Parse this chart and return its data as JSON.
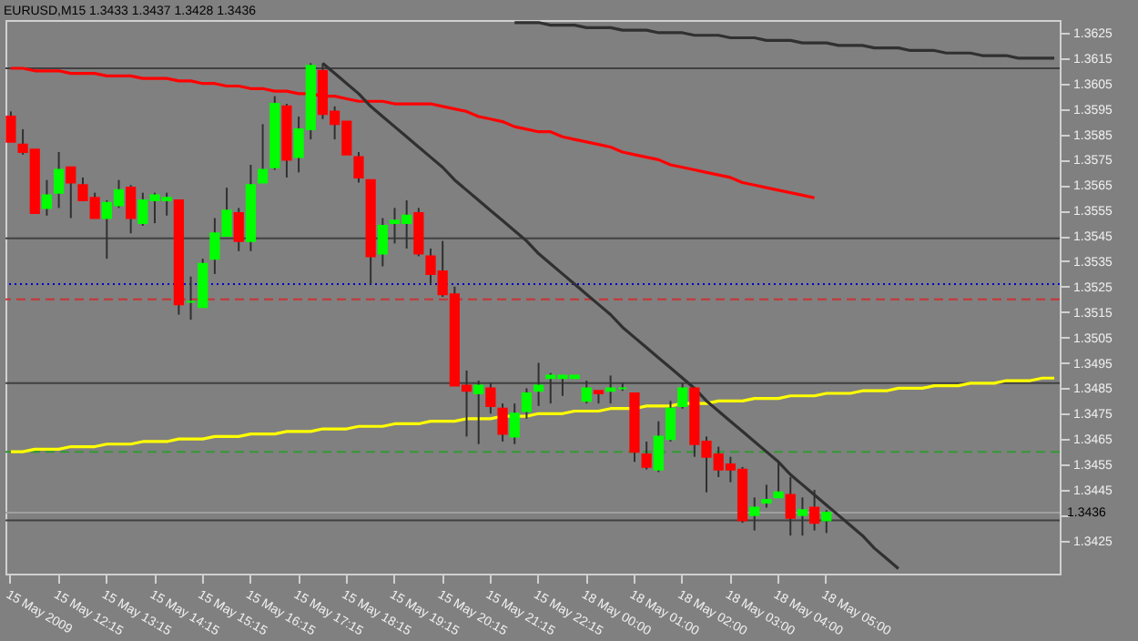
{
  "chart_data": {
    "type": "candlestick",
    "title": "EURUSD,M15  1.3433 1.3437 1.3428 1.3436",
    "categories": [
      "15 May 2009",
      null,
      null,
      null,
      "15 May 12:15",
      null,
      null,
      null,
      "15 May 13:15",
      null,
      null,
      null,
      "15 May 14:15",
      null,
      null,
      null,
      "15 May 15:15",
      null,
      null,
      null,
      "15 May 16:15",
      null,
      null,
      null,
      "15 May 17:15",
      null,
      null,
      null,
      "15 May 18:15",
      null,
      null,
      null,
      "15 May 19:15",
      null,
      null,
      null,
      "15 May 20:15",
      null,
      null,
      null,
      "15 May 21:15",
      null,
      null,
      null,
      "15 May 22:15",
      null,
      null,
      null,
      "18 May 00:00",
      null,
      null,
      null,
      "18 May 01:00",
      null,
      null,
      null,
      "18 May 02:00",
      null,
      null,
      null,
      "18 May 03:00",
      null,
      null,
      null,
      "18 May 04:00",
      null,
      null,
      null,
      "18 May 05:00",
      null,
      null,
      null,
      null,
      null,
      null,
      null,
      null,
      null,
      null,
      null,
      null,
      null,
      null,
      null,
      null,
      null,
      null,
      null
    ],
    "ohlc": [
      [
        1.3592,
        1.3594,
        1.3582,
        1.3582
      ],
      [
        1.3581,
        1.3587,
        1.3577,
        1.3578
      ],
      [
        1.3579,
        1.3579,
        1.3554,
        1.3554
      ],
      [
        1.3556,
        1.3567,
        1.3553,
        1.3561
      ],
      [
        1.3562,
        1.3578,
        1.3556,
        1.3571
      ],
      [
        1.3572,
        1.3572,
        1.3552,
        1.3566
      ],
      [
        1.3565,
        1.3568,
        1.3559,
        1.3559
      ],
      [
        1.356,
        1.3562,
        1.3552,
        1.3552
      ],
      [
        1.3552,
        1.3559,
        1.3536,
        1.3558
      ],
      [
        1.3557,
        1.3567,
        1.3556,
        1.3563
      ],
      [
        1.3564,
        1.3565,
        1.3546,
        1.3552
      ],
      [
        1.355,
        1.3562,
        1.3549,
        1.3559
      ],
      [
        1.3559,
        1.3562,
        1.355,
        1.3561
      ],
      [
        1.3559,
        1.3562,
        1.3553,
        1.356
      ],
      [
        1.3559,
        1.3559,
        1.3514,
        1.3518
      ],
      [
        1.3519,
        1.3529,
        1.3512,
        1.3519
      ],
      [
        1.3517,
        1.3536,
        1.3517,
        1.3534
      ],
      [
        1.3536,
        1.3552,
        1.353,
        1.3546
      ],
      [
        1.3545,
        1.3564,
        1.3545,
        1.3555
      ],
      [
        1.3554,
        1.3556,
        1.3539,
        1.3543
      ],
      [
        1.3543,
        1.3573,
        1.3539,
        1.3565
      ],
      [
        1.3566,
        1.3589,
        1.3566,
        1.3571
      ],
      [
        1.3572,
        1.36,
        1.3571,
        1.3597
      ],
      [
        1.3596,
        1.3597,
        1.3568,
        1.3575
      ],
      [
        1.3576,
        1.3592,
        1.357,
        1.3587
      ],
      [
        1.3587,
        1.3613,
        1.3583,
        1.3612
      ],
      [
        1.361,
        1.3613,
        1.3591,
        1.3593
      ],
      [
        1.3594,
        1.3596,
        1.3583,
        1.3589
      ],
      [
        1.359,
        1.359,
        1.3577,
        1.3577
      ],
      [
        1.3576,
        1.3578,
        1.3566,
        1.3568
      ],
      [
        1.3567,
        1.3567,
        1.3526,
        1.3537
      ],
      [
        1.3538,
        1.3552,
        1.3533,
        1.3549
      ],
      [
        1.355,
        1.3556,
        1.3542,
        1.3551
      ],
      [
        1.355,
        1.3559,
        1.354,
        1.3553
      ],
      [
        1.3554,
        1.3556,
        1.3537,
        1.3538
      ],
      [
        1.3537,
        1.354,
        1.3526,
        1.353
      ],
      [
        1.3531,
        1.3543,
        1.3521,
        1.3522
      ],
      [
        1.3522,
        1.3525,
        1.3486,
        1.3486
      ],
      [
        1.3486,
        1.3492,
        1.3466,
        1.3484
      ],
      [
        1.3483,
        1.3488,
        1.3463,
        1.3486
      ],
      [
        1.3485,
        1.3487,
        1.3475,
        1.3478
      ],
      [
        1.3477,
        1.3479,
        1.3464,
        1.3467
      ],
      [
        1.3466,
        1.3479,
        1.3463,
        1.3475
      ],
      [
        1.3476,
        1.3485,
        1.3473,
        1.3483
      ],
      [
        1.3484,
        1.3495,
        1.3478,
        1.3486
      ],
      [
        1.3489,
        1.3491,
        1.3479,
        1.349
      ],
      [
        1.3489,
        1.349,
        1.3482,
        1.349
      ],
      [
        1.3489,
        1.349,
        1.3489,
        1.349
      ],
      [
        1.348,
        1.3488,
        1.3479,
        1.3485
      ],
      [
        1.3484,
        1.3484,
        1.3479,
        1.3483
      ],
      [
        1.3484,
        1.349,
        1.3479,
        1.3485
      ],
      [
        1.3485,
        1.3487,
        1.3484,
        1.3485
      ],
      [
        1.3483,
        1.3483,
        1.3456,
        1.346
      ],
      [
        1.3459,
        1.3464,
        1.3453,
        1.3454
      ],
      [
        1.3453,
        1.3472,
        1.3452,
        1.3466
      ],
      [
        1.3465,
        1.348,
        1.3464,
        1.3477
      ],
      [
        1.3478,
        1.3487,
        1.3477,
        1.3485
      ],
      [
        1.3485,
        1.3485,
        1.3458,
        1.3463
      ],
      [
        1.3464,
        1.3466,
        1.3444,
        1.3458
      ],
      [
        1.3459,
        1.3462,
        1.345,
        1.3453
      ],
      [
        1.3455,
        1.3458,
        1.3448,
        1.3453
      ],
      [
        1.3453,
        1.3454,
        1.3432,
        1.3433
      ],
      [
        1.3435,
        1.3442,
        1.3429,
        1.3438
      ],
      [
        1.344,
        1.3447,
        1.3438,
        1.3441
      ],
      [
        1.3442,
        1.3456,
        1.3442,
        1.3444
      ],
      [
        1.3443,
        1.345,
        1.3427,
        1.3434
      ],
      [
        1.3435,
        1.3442,
        1.3427,
        1.3437
      ],
      [
        1.3438,
        1.3445,
        1.3429,
        1.3432
      ],
      [
        1.3433,
        1.3437,
        1.3428,
        1.3436
      ],
      null,
      null,
      null,
      null,
      null,
      null,
      null,
      null,
      null,
      null,
      null,
      null,
      null,
      null,
      null,
      null,
      null,
      null,
      null
    ],
    "colors": [
      "#ff0000",
      "#ff0000",
      "#ff0000",
      "#00ff00",
      "#00ff00",
      "#ff0000",
      "#ff0000",
      "#ff0000",
      "#00ff00",
      "#00ff00",
      "#ff0000",
      "#00ff00",
      "#00ff00",
      "#00ff00",
      "#ff0000",
      "#00ff00",
      "#00ff00",
      "#00ff00",
      "#00ff00",
      "#ff0000",
      "#00ff00",
      "#00ff00",
      "#00ff00",
      "#ff0000",
      "#00ff00",
      "#00ff00",
      "#ff0000",
      "#ff0000",
      "#ff0000",
      "#ff0000",
      "#ff0000",
      "#00ff00",
      "#00ff00",
      "#00ff00",
      "#ff0000",
      "#ff0000",
      "#ff0000",
      "#ff0000",
      "#ff0000",
      "#00ff00",
      "#ff0000",
      "#ff0000",
      "#00ff00",
      "#00ff00",
      "#00ff00",
      "#00ff00",
      "#00ff00",
      "#00ff00",
      "#00ff00",
      "#ff0000",
      "#00ff00",
      "#00ff00",
      "#ff0000",
      "#ff0000",
      "#00ff00",
      "#00ff00",
      "#00ff00",
      "#ff0000",
      "#ff0000",
      "#ff0000",
      "#ff0000",
      "#ff0000",
      "#00ff00",
      "#00ff00",
      "#00ff00",
      "#ff0000",
      "#00ff00",
      "#ff0000",
      "#00ff00",
      null,
      null,
      null,
      null,
      null,
      null,
      null,
      null,
      null,
      null,
      null,
      null,
      null,
      null,
      null,
      null,
      null,
      null,
      null
    ],
    "series": [
      {
        "type": "line",
        "color": "#ff0000",
        "values": [
          1.3611,
          1.3611,
          1.361,
          1.361,
          1.361,
          1.3609,
          1.3609,
          1.3609,
          1.3608,
          1.3608,
          1.3608,
          1.3607,
          1.3607,
          1.3607,
          1.3606,
          1.3606,
          1.3605,
          1.3605,
          1.3604,
          1.3604,
          1.3603,
          1.3603,
          1.3602,
          1.3602,
          1.3601,
          1.3601,
          1.36,
          1.36,
          1.3599,
          1.3598,
          1.3598,
          1.3598,
          1.3597,
          1.3597,
          1.3597,
          1.3597,
          1.3596,
          1.3595,
          1.3594,
          1.3592,
          1.3591,
          1.359,
          1.3588,
          1.3587,
          1.3586,
          1.3586,
          1.3584,
          1.3583,
          1.3582,
          1.3581,
          1.358,
          1.3578,
          1.3577,
          1.3576,
          1.3575,
          1.3573,
          1.3572,
          1.3571,
          1.357,
          1.3569,
          1.3568,
          1.3566,
          1.3565,
          1.3564,
          1.3563,
          1.3562,
          1.3561,
          1.356,
          null,
          null,
          null,
          null,
          null,
          null,
          null,
          null,
          null,
          null,
          null,
          null,
          null,
          null,
          null,
          null,
          null,
          null,
          null,
          null
        ]
      },
      {
        "type": "line",
        "color": "#ffff00",
        "values": [
          1.346,
          1.346,
          1.3461,
          1.3461,
          1.3461,
          1.3462,
          1.3462,
          1.3462,
          1.3463,
          1.3463,
          1.3463,
          1.3464,
          1.3464,
          1.3464,
          1.3465,
          1.3465,
          1.3465,
          1.3466,
          1.3466,
          1.3466,
          1.3467,
          1.3467,
          1.3467,
          1.3468,
          1.3468,
          1.3468,
          1.3469,
          1.3469,
          1.3469,
          1.347,
          1.347,
          1.347,
          1.3471,
          1.3471,
          1.3471,
          1.3472,
          1.3472,
          1.3472,
          1.3473,
          1.3473,
          1.3473,
          1.3474,
          1.3474,
          1.3474,
          1.3475,
          1.3475,
          1.3475,
          1.3476,
          1.3476,
          1.3476,
          1.3477,
          1.3477,
          1.3477,
          1.3478,
          1.3478,
          1.3478,
          1.3479,
          1.3479,
          1.3479,
          1.348,
          1.348,
          1.348,
          1.3481,
          1.3481,
          1.3481,
          1.3482,
          1.3482,
          1.3482,
          1.3483,
          1.3483,
          1.3483,
          1.3484,
          1.3484,
          1.3484,
          1.3485,
          1.3485,
          1.3485,
          1.3486,
          1.3486,
          1.3486,
          1.3487,
          1.3487,
          1.3487,
          1.3488,
          1.3488,
          1.3488,
          1.3489,
          1.3489
        ]
      },
      {
        "type": "line",
        "color": "#303030",
        "values": [
          null,
          null,
          null,
          null,
          null,
          null,
          null,
          null,
          null,
          null,
          null,
          null,
          null,
          null,
          null,
          null,
          null,
          null,
          null,
          null,
          null,
          null,
          null,
          null,
          null,
          null,
          1.3613,
          1.3609,
          1.3605,
          1.3601,
          1.3596,
          1.3592,
          1.3588,
          1.3584,
          1.358,
          1.3576,
          1.3572,
          1.3567,
          1.3563,
          1.3559,
          1.3555,
          1.3551,
          1.3547,
          1.3543,
          1.3538,
          1.3534,
          1.353,
          1.3526,
          1.3522,
          1.3518,
          1.3514,
          1.3509,
          1.3505,
          1.3501,
          1.3497,
          1.3493,
          1.3489,
          1.3485,
          1.348,
          1.3476,
          1.3472,
          1.3468,
          1.3464,
          1.346,
          1.3456,
          1.3451,
          1.3447,
          1.3443,
          1.3439,
          1.3435,
          1.3431,
          1.3427,
          1.3422,
          1.3418,
          1.3414,
          null,
          null,
          null,
          null,
          null,
          null,
          null,
          null,
          null,
          null,
          null,
          null,
          null
        ]
      },
      {
        "type": "line",
        "color": "#303030",
        "values": [
          null,
          null,
          null,
          null,
          null,
          null,
          null,
          null,
          null,
          null,
          null,
          null,
          null,
          null,
          null,
          null,
          null,
          null,
          null,
          null,
          null,
          null,
          null,
          null,
          null,
          null,
          null,
          null,
          null,
          null,
          null,
          null,
          null,
          null,
          null,
          null,
          null,
          null,
          null,
          null,
          null,
          null,
          1.3629,
          1.3629,
          1.3629,
          1.3628,
          1.3628,
          1.3628,
          1.3627,
          1.3627,
          1.3627,
          1.3626,
          1.3626,
          1.3626,
          1.3625,
          1.3625,
          1.3625,
          1.3624,
          1.3624,
          1.3624,
          1.3623,
          1.3623,
          1.3623,
          1.3622,
          1.3622,
          1.3622,
          1.3621,
          1.3621,
          1.3621,
          1.362,
          1.362,
          1.362,
          1.3619,
          1.3619,
          1.3619,
          1.3618,
          1.3618,
          1.3618,
          1.3617,
          1.3617,
          1.3617,
          1.3616,
          1.3616,
          1.3616,
          1.3615,
          1.3615,
          1.3615,
          1.3615
        ]
      }
    ],
    "ref_lines": [
      {
        "axis": "y",
        "value": 1.3611,
        "color": "#404040",
        "line_style": "solid"
      },
      {
        "axis": "y",
        "value": 1.3544,
        "color": "#404040",
        "line_style": "solid"
      },
      {
        "axis": "y",
        "value": 1.3526,
        "color": "#0000cc",
        "line_style": "dotted"
      },
      {
        "axis": "y",
        "value": 1.352,
        "color": "#cc3333",
        "line_style": "dashed"
      },
      {
        "axis": "y",
        "value": 1.3487,
        "color": "#404040",
        "line_style": "solid"
      },
      {
        "axis": "y",
        "value": 1.346,
        "color": "#339933",
        "line_style": "dashed"
      },
      {
        "axis": "y",
        "value": 1.3433,
        "color": "#404040",
        "line_style": "solid"
      },
      {
        "axis": "y",
        "value": 1.3436,
        "color": "#a0a0a0",
        "line_style": "solid",
        "label": "1.3436"
      }
    ],
    "ylim": [
      1.3412,
      1.363
    ],
    "yticks": [
      1.3625,
      1.3615,
      1.3605,
      1.3595,
      1.3585,
      1.3575,
      1.3565,
      1.3555,
      1.3545,
      1.3535,
      1.3525,
      1.3515,
      1.3505,
      1.3495,
      1.3485,
      1.3475,
      1.3465,
      1.3455,
      1.3445,
      {
        "value": 1.3435,
        "label": null
      },
      1.3425
    ],
    "grid": false
  }
}
